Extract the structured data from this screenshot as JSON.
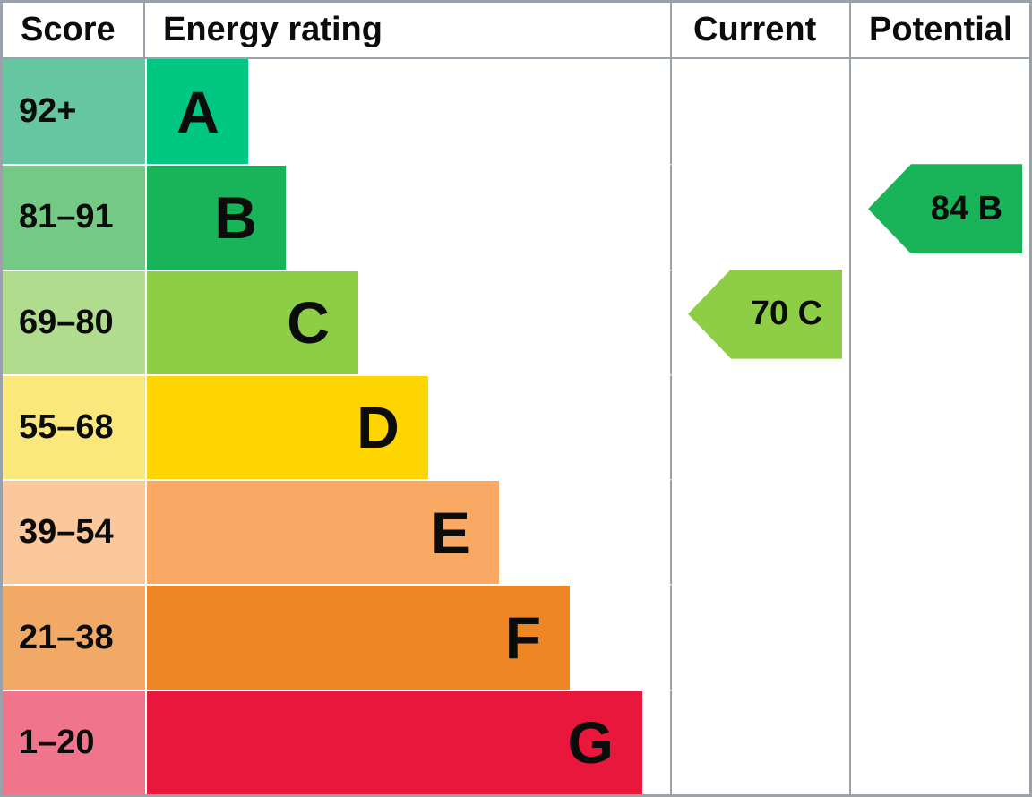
{
  "header": {
    "score": "Score",
    "energy_rating": "Energy rating",
    "current": "Current",
    "potential": "Potential"
  },
  "bands": [
    {
      "score_range": "92+",
      "letter": "A",
      "bar_color": "#00c781",
      "score_color": "#66c6a1",
      "bar_width_pct": 19.6
    },
    {
      "score_range": "81–91",
      "letter": "B",
      "bar_color": "#19b459",
      "score_color": "#74c985",
      "bar_width_pct": 26.8
    },
    {
      "score_range": "69–80",
      "letter": "C",
      "bar_color": "#8dce46",
      "score_color": "#b2dc8d",
      "bar_width_pct": 40.6
    },
    {
      "score_range": "55–68",
      "letter": "D",
      "bar_color": "#ffd500",
      "score_color": "#fbe87d",
      "bar_width_pct": 53.9
    },
    {
      "score_range": "39–54",
      "letter": "E",
      "bar_color": "#faa965",
      "score_color": "#fbc89c",
      "bar_width_pct": 67.4
    },
    {
      "score_range": "21–38",
      "letter": "F",
      "bar_color": "#ee8723",
      "score_color": "#f3a966",
      "bar_width_pct": 80.9
    },
    {
      "score_range": "1–20",
      "letter": "G",
      "bar_color": "#e8173b",
      "score_color": "#f0748b",
      "bar_width_pct": 94.7
    }
  ],
  "current": {
    "label": "70 C",
    "score": 70,
    "band": "C",
    "color": "#8dce46"
  },
  "potential": {
    "label": "84 B",
    "score": 84,
    "band": "B",
    "color": "#19b459"
  },
  "colors": {
    "border": "#9aa1ab",
    "row_separator": "#ffffff",
    "text": "#0b0c0c"
  },
  "chart_data": {
    "type": "bar",
    "title": "Energy rating (EPC) chart",
    "columns": [
      "Score",
      "Energy rating",
      "Current",
      "Potential"
    ],
    "categories": [
      "A",
      "B",
      "C",
      "D",
      "E",
      "F",
      "G"
    ],
    "score_ranges": [
      "92+",
      "81–91",
      "69–80",
      "55–68",
      "39–54",
      "21–38",
      "1–20"
    ],
    "bar_width_pct_of_column": [
      19.6,
      26.8,
      40.6,
      53.9,
      67.4,
      80.9,
      94.7
    ],
    "bar_colors": [
      "#00c781",
      "#19b459",
      "#8dce46",
      "#ffd500",
      "#faa965",
      "#ee8723",
      "#e8173b"
    ],
    "current": {
      "score": 70,
      "band": "C"
    },
    "potential": {
      "score": 84,
      "band": "B"
    },
    "legend_position": "none",
    "grid": false
  }
}
